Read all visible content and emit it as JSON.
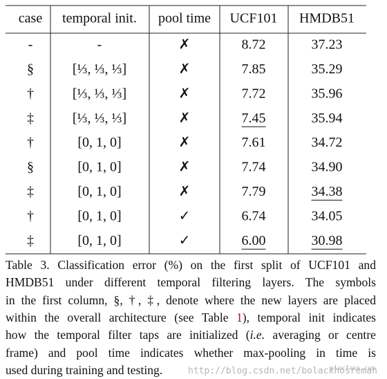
{
  "table": {
    "header": [
      "case",
      "temporal init.",
      "pool time",
      "UCF101",
      "HMDB51"
    ],
    "rows": [
      [
        "-",
        "-",
        "✗",
        "8.72",
        "37.23"
      ],
      [
        "§",
        "[⅓, ⅓, ⅓]",
        "✗",
        "7.85",
        "35.29"
      ],
      [
        "†",
        "[⅓, ⅓, ⅓]",
        "✗",
        "7.72",
        "35.96"
      ],
      [
        "‡",
        "[⅓, ⅓, ⅓]",
        "✗",
        {
          "text": "7.45",
          "underline": true
        },
        "35.94"
      ],
      [
        "†",
        "[0, 1, 0]",
        "✗",
        "7.61",
        "34.72"
      ],
      [
        "§",
        "[0, 1, 0]",
        "✗",
        "7.74",
        "34.90"
      ],
      [
        "‡",
        "[0, 1, 0]",
        "✗",
        "7.79",
        {
          "text": "34.38",
          "underline": true
        }
      ],
      [
        "†",
        "[0, 1, 0]",
        "✓",
        "6.74",
        "34.05"
      ],
      [
        "‡",
        "[0, 1, 0]",
        "✓",
        {
          "text": "6.00",
          "underline": true
        },
        {
          "text": "30.98",
          "underline": true
        }
      ]
    ]
  },
  "caption": {
    "lines": [
      [
        "Table 3. Classification error (%) on the first split of UCF101 and"
      ],
      [
        "HMDB51 under different temporal filtering layers.  The symbols"
      ],
      [
        "in the first column, §, †, ‡, denote where the new layers are placed"
      ],
      [
        "within the overall architecture (see Table ",
        "1",
        "), temporal init indicates"
      ],
      [
        "how the temporal filter taps are initialized (",
        "i.e.",
        " averaging or centre"
      ],
      [
        "frame) and pool time indicates whether max-pooling in time is"
      ],
      [
        "used during training and testing."
      ]
    ]
  },
  "watermarks": [
    "http://blog.csdn.net/bolackhosreman",
    "elecfans.com"
  ]
}
